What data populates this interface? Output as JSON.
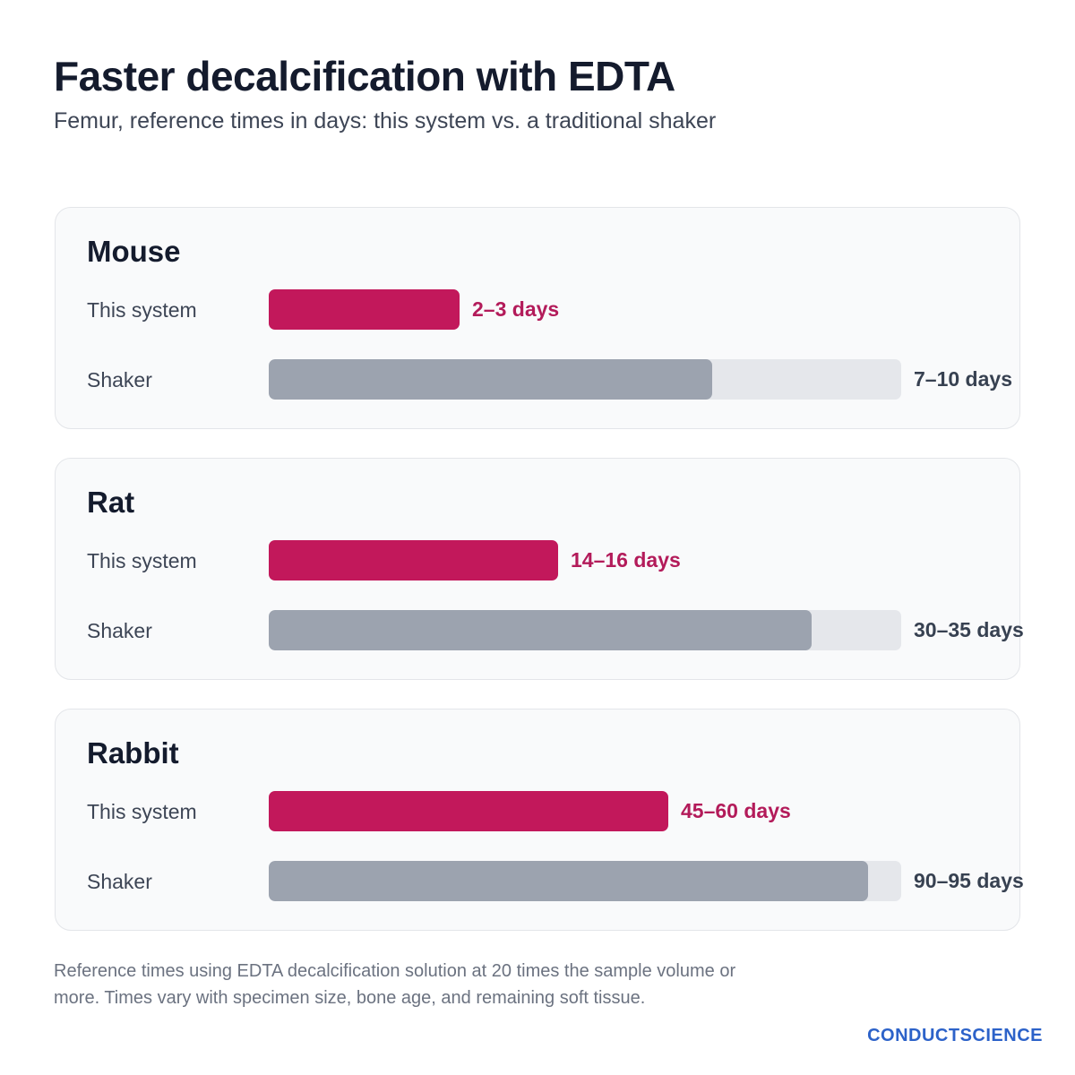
{
  "title": "Faster decalcification with EDTA",
  "subtitle": "Femur, reference times in days: this system vs. a traditional shaker",
  "chart_data": {
    "type": "bar",
    "orientation": "horizontal",
    "unit": "days",
    "xlim": [
      0,
      100
    ],
    "groups": [
      {
        "name": "Mouse",
        "bars": [
          {
            "label": "This system",
            "value_text": "2–3 days",
            "min": 2,
            "max": 3
          },
          {
            "label": "Shaker",
            "value_text": "7–10 days",
            "min": 7,
            "max": 10
          }
        ]
      },
      {
        "name": "Rat",
        "bars": [
          {
            "label": "This system",
            "value_text": "14–16 days",
            "min": 14,
            "max": 16
          },
          {
            "label": "Shaker",
            "value_text": "30–35 days",
            "min": 30,
            "max": 35
          }
        ]
      },
      {
        "name": "Rabbit",
        "bars": [
          {
            "label": "This system",
            "value_text": "45–60 days",
            "min": 45,
            "max": 60
          },
          {
            "label": "Shaker",
            "value_text": "90–95 days",
            "min": 90,
            "max": 95
          }
        ]
      }
    ],
    "colors": {
      "system": "#c2185b",
      "shaker": "#9ca3af",
      "track": "#e5e7eb"
    }
  },
  "footnote": "Reference times using EDTA decalcification solution at 20 times the sample volume or more. Times vary with specimen size, bone age, and remaining soft tissue.",
  "brand": "CONDUCTSCIENCE"
}
